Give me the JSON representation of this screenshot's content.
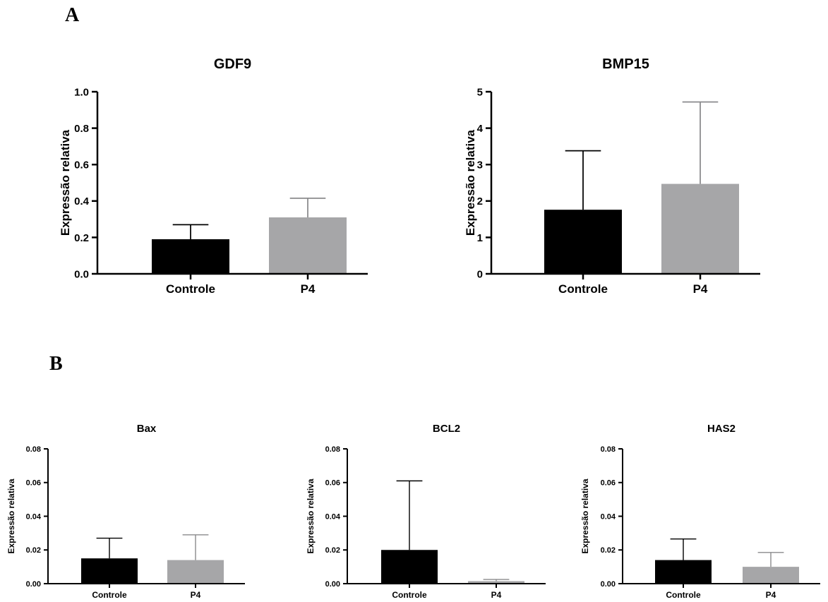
{
  "panels": {
    "a": "A",
    "b": "B"
  },
  "chart_data": [
    {
      "type": "bar",
      "title": "GDF9",
      "ylabel": "Expressão relativa",
      "xlabel": "",
      "categories": [
        "Controle",
        "P4"
      ],
      "values": [
        0.19,
        0.31
      ],
      "errors": [
        0.08,
        0.105
      ],
      "ylim": [
        0,
        1.0
      ],
      "yticks": [
        "0.0",
        "0.2",
        "0.4",
        "0.6",
        "0.8",
        "1.0"
      ],
      "colors": [
        "#000000",
        "#a6a6a8"
      ],
      "grid": false,
      "legend": "none"
    },
    {
      "type": "bar",
      "title": "BMP15",
      "ylabel": "Expressão relativa",
      "xlabel": "",
      "categories": [
        "Controle",
        "P4"
      ],
      "values": [
        1.76,
        2.47
      ],
      "errors": [
        1.62,
        2.25
      ],
      "ylim": [
        0,
        5
      ],
      "yticks": [
        "0",
        "1",
        "2",
        "3",
        "4",
        "5"
      ],
      "colors": [
        "#000000",
        "#a6a6a8"
      ],
      "grid": false,
      "legend": "none"
    },
    {
      "type": "bar",
      "title": "Bax",
      "ylabel": "Expressão relativa",
      "xlabel": "",
      "categories": [
        "Controle",
        "P4"
      ],
      "values": [
        0.015,
        0.014
      ],
      "errors": [
        0.012,
        0.015
      ],
      "ylim": [
        0,
        0.08
      ],
      "yticks": [
        "0.00",
        "0.02",
        "0.04",
        "0.06",
        "0.08"
      ],
      "colors": [
        "#000000",
        "#a6a6a8"
      ],
      "grid": false,
      "legend": "none"
    },
    {
      "type": "bar",
      "title": "BCL2",
      "ylabel": "Expressão relativa",
      "xlabel": "",
      "categories": [
        "Controle",
        "P4"
      ],
      "values": [
        0.02,
        0.0015
      ],
      "errors": [
        0.041,
        0.001
      ],
      "ylim": [
        0,
        0.08
      ],
      "yticks": [
        "0.00",
        "0.02",
        "0.04",
        "0.06",
        "0.08"
      ],
      "colors": [
        "#000000",
        "#a6a6a8"
      ],
      "grid": false,
      "legend": "none"
    },
    {
      "type": "bar",
      "title": "HAS2",
      "ylabel": "Expressão relativa",
      "xlabel": "",
      "categories": [
        "Controle",
        "P4"
      ],
      "values": [
        0.014,
        0.01
      ],
      "errors": [
        0.0125,
        0.0085
      ],
      "ylim": [
        0,
        0.08
      ],
      "yticks": [
        "0.00",
        "0.02",
        "0.04",
        "0.06",
        "0.08"
      ],
      "colors": [
        "#000000",
        "#a6a6a8"
      ],
      "grid": false,
      "legend": "none"
    }
  ]
}
